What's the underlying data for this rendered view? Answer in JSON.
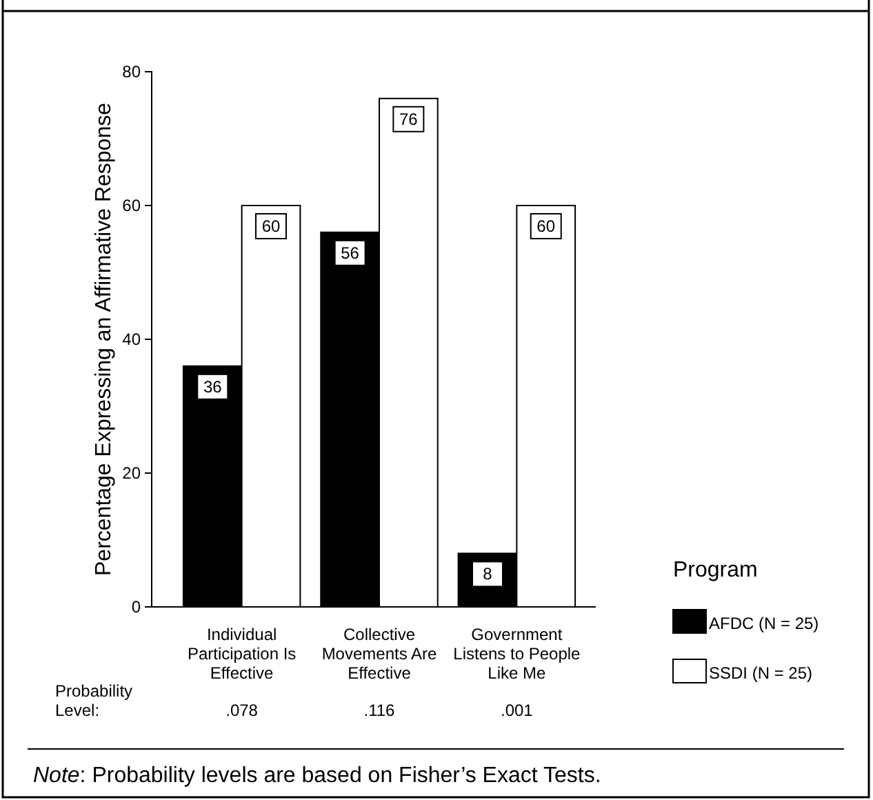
{
  "chart_data": {
    "type": "bar",
    "ylabel": "Percentage Expressing an Affirmative Response",
    "categories": [
      "Individual Participation Is Effective",
      "Collective Movements Are Effective",
      "Government Listens to People Like Me"
    ],
    "series": [
      {
        "name": "AFDC (N = 25)",
        "color": "#000000",
        "values": [
          36,
          56,
          8
        ]
      },
      {
        "name": "SSDI (N = 25)",
        "color": "#ffffff",
        "values": [
          60,
          76,
          60
        ]
      }
    ],
    "ylim": [
      0,
      80
    ],
    "yticks": [
      0,
      20,
      40,
      60,
      80
    ],
    "grid": false,
    "legend": "right",
    "legend_title": "Program",
    "data_labels": true,
    "annotations": [
      "Probability Level:",
      ".078",
      ".116",
      ".001",
      "Note: Probability levels are based on Fisher’s Exact Tests."
    ]
  }
}
